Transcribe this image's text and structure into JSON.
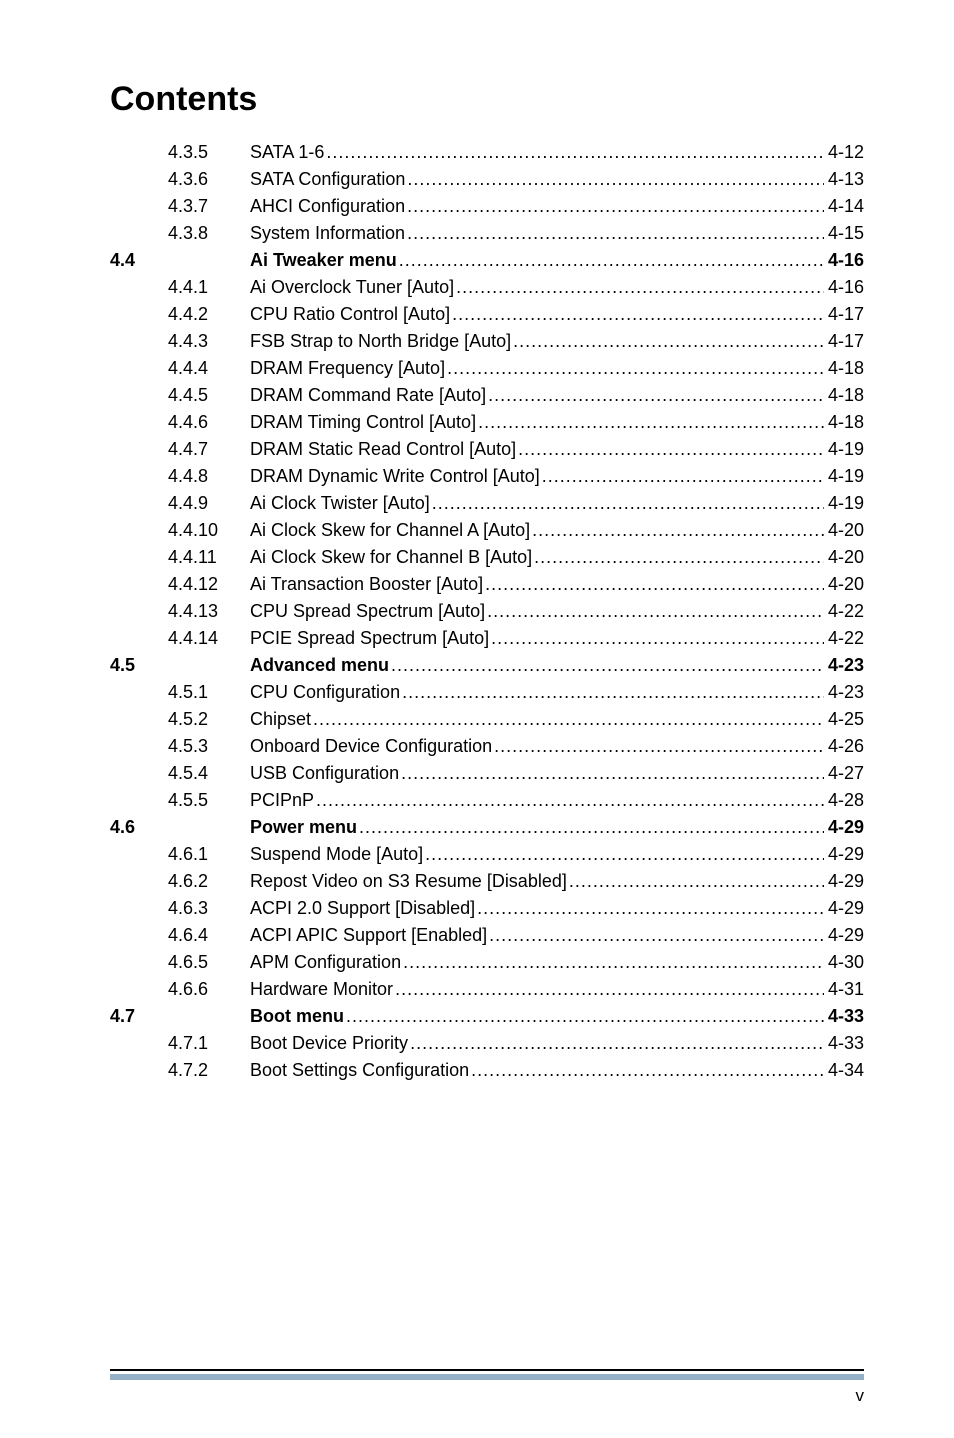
{
  "title": "Contents",
  "page_number": "v",
  "colors": {
    "text": "#000000",
    "background": "#ffffff",
    "footer_line": "#000000",
    "footer_sub": "#95b1c8"
  },
  "typography": {
    "title_fontsize": 34,
    "body_fontsize": 18,
    "font_family": "Arial, Helvetica, sans-serif"
  },
  "toc": [
    {
      "section": "",
      "num": "4.3.5",
      "label": "SATA 1-6",
      "page": "4-12",
      "bold": false
    },
    {
      "section": "",
      "num": "4.3.6",
      "label": "SATA Configuration",
      "page": "4-13",
      "bold": false
    },
    {
      "section": "",
      "num": "4.3.7",
      "label": "AHCI Configuration",
      "page": "4-14",
      "bold": false
    },
    {
      "section": "",
      "num": "4.3.8",
      "label": "System Information",
      "page": "4-15",
      "bold": false
    },
    {
      "section": "4.4",
      "num": "",
      "label": "Ai Tweaker menu",
      "page": "4-16",
      "bold": true
    },
    {
      "section": "",
      "num": "4.4.1",
      "label": "Ai Overclock Tuner [Auto]",
      "page": "4-16",
      "bold": false
    },
    {
      "section": "",
      "num": "4.4.2",
      "label": "CPU Ratio Control [Auto]",
      "page": "4-17",
      "bold": false
    },
    {
      "section": "",
      "num": "4.4.3",
      "label": "FSB Strap to North Bridge [Auto]",
      "page": "4-17",
      "bold": false
    },
    {
      "section": "",
      "num": "4.4.4",
      "label": "DRAM Frequency [Auto]",
      "page": "4-18",
      "bold": false
    },
    {
      "section": "",
      "num": "4.4.5",
      "label": "DRAM Command Rate [Auto]",
      "page": "4-18",
      "bold": false
    },
    {
      "section": "",
      "num": "4.4.6",
      "label": "DRAM Timing Control [Auto]",
      "page": "4-18",
      "bold": false
    },
    {
      "section": "",
      "num": "4.4.7",
      "label": "DRAM Static Read Control [Auto]",
      "page": "4-19",
      "bold": false
    },
    {
      "section": "",
      "num": "4.4.8",
      "label": "DRAM Dynamic Write Control [Auto]",
      "page": "4-19",
      "bold": false
    },
    {
      "section": "",
      "num": "4.4.9",
      "label": "Ai Clock Twister [Auto]",
      "page": "4-19",
      "bold": false
    },
    {
      "section": "",
      "num": "4.4.10",
      "label": "Ai Clock Skew for Channel A [Auto]",
      "page": "4-20",
      "bold": false
    },
    {
      "section": "",
      "num": "4.4.11",
      "label": "Ai Clock Skew for Channel B [Auto]",
      "page": "4-20",
      "bold": false
    },
    {
      "section": "",
      "num": "4.4.12",
      "label": "Ai Transaction Booster [Auto]",
      "page": "4-20",
      "bold": false
    },
    {
      "section": "",
      "num": "4.4.13",
      "label": "CPU Spread Spectrum [Auto]",
      "page": "4-22",
      "bold": false
    },
    {
      "section": "",
      "num": "4.4.14",
      "label": "PCIE Spread Spectrum [Auto]",
      "page": "4-22",
      "bold": false
    },
    {
      "section": "4.5",
      "num": "",
      "label": "Advanced menu",
      "page": "4-23",
      "bold": true
    },
    {
      "section": "",
      "num": "4.5.1",
      "label": "CPU Configuration",
      "page": "4-23",
      "bold": false
    },
    {
      "section": "",
      "num": "4.5.2",
      "label": "Chipset",
      "page": "4-25",
      "bold": false
    },
    {
      "section": "",
      "num": "4.5.3",
      "label": "Onboard Device Configuration",
      "page": "4-26",
      "bold": false
    },
    {
      "section": "",
      "num": "4.5.4",
      "label": "USB Configuration",
      "page": "4-27",
      "bold": false
    },
    {
      "section": "",
      "num": "4.5.5",
      "label": "PCIPnP",
      "page": "4-28",
      "bold": false
    },
    {
      "section": "4.6",
      "num": "",
      "label": "Power menu",
      "page": "4-29",
      "bold": true
    },
    {
      "section": "",
      "num": "4.6.1",
      "label": "Suspend Mode [Auto]",
      "page": "4-29",
      "bold": false
    },
    {
      "section": "",
      "num": "4.6.2",
      "label": "Repost Video on S3 Resume [Disabled]",
      "page": "4-29",
      "bold": false
    },
    {
      "section": "",
      "num": "4.6.3",
      "label": "ACPI 2.0 Support [Disabled]",
      "page": "4-29",
      "bold": false
    },
    {
      "section": "",
      "num": "4.6.4",
      "label": "ACPI APIC Support [Enabled]",
      "page": "4-29",
      "bold": false
    },
    {
      "section": "",
      "num": "4.6.5",
      "label": "APM Configuration",
      "page": "4-30",
      "bold": false
    },
    {
      "section": "",
      "num": "4.6.6",
      "label": "Hardware Monitor",
      "page": "4-31",
      "bold": false
    },
    {
      "section": "4.7",
      "num": "",
      "label": "Boot menu",
      "page": "4-33",
      "bold": true
    },
    {
      "section": "",
      "num": "4.7.1",
      "label": "Boot Device Priority",
      "page": "4-33",
      "bold": false
    },
    {
      "section": "",
      "num": "4.7.2",
      "label": "Boot Settings Configuration",
      "page": "4-34",
      "bold": false
    }
  ]
}
